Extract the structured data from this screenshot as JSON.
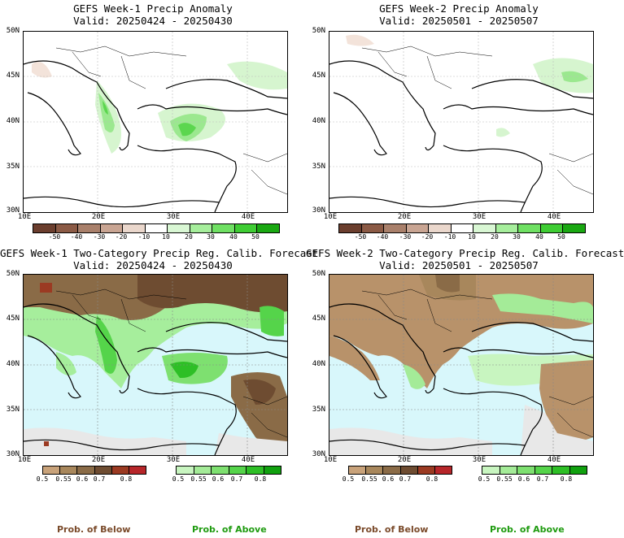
{
  "panels": [
    {
      "title": "GEFS Week-1 Precip Anomaly",
      "valid": "Valid: 20250424 - 20250430"
    },
    {
      "title": "GEFS Week-2 Precip Anomaly",
      "valid": "Valid: 20250501 - 20250507"
    },
    {
      "title": "GEFS Week-1 Two-Category Precip Reg. Calib. Forecast",
      "valid": "Valid: 20250424 - 20250430"
    },
    {
      "title": "GEFS Week-2 Two-Category Precip Reg. Calib. Forecast",
      "valid": "Valid: 20250501 - 20250507"
    }
  ],
  "axes": {
    "lat_labels": [
      "50N",
      "45N",
      "40N",
      "35N",
      "30N"
    ],
    "lon_labels": [
      "10E",
      "20E",
      "30E",
      "40E"
    ]
  },
  "anomaly_colorbar": {
    "labels": [
      "-50",
      "-40",
      "-30",
      "-20",
      "-10",
      "10",
      "20",
      "30",
      "40",
      "50"
    ],
    "colors": [
      "#6b3e2e",
      "#8b5a45",
      "#a9806b",
      "#c9a593",
      "#ead7cc",
      "#ffffff",
      "#d9f7d4",
      "#a6ee9c",
      "#6fe063",
      "#3fcd34",
      "#1aa812"
    ]
  },
  "prob_below_colorbar": {
    "labels": [
      "0.5",
      "0.55",
      "0.6",
      "0.7",
      "0.8"
    ],
    "colors": [
      "#c8a27a",
      "#a8875c",
      "#8a6b47",
      "#6e4c31",
      "#9b3a22",
      "#b7262a"
    ]
  },
  "prob_above_colorbar": {
    "labels": [
      "0.5",
      "0.55",
      "0.6",
      "0.7",
      "0.8"
    ],
    "colors": [
      "#c8f5c0",
      "#a4eb98",
      "#7ee070",
      "#55d44a",
      "#2ebf26",
      "#11a10f"
    ]
  },
  "legend": {
    "below": "Prob. of Below",
    "above": "Prob. of Above",
    "below_color": "#7a4a2a",
    "above_color": "#1f9b10"
  },
  "colors": {
    "sea": "#d8f7fb",
    "land_below": "#b8926a",
    "no_data": "#e8e8e8"
  }
}
